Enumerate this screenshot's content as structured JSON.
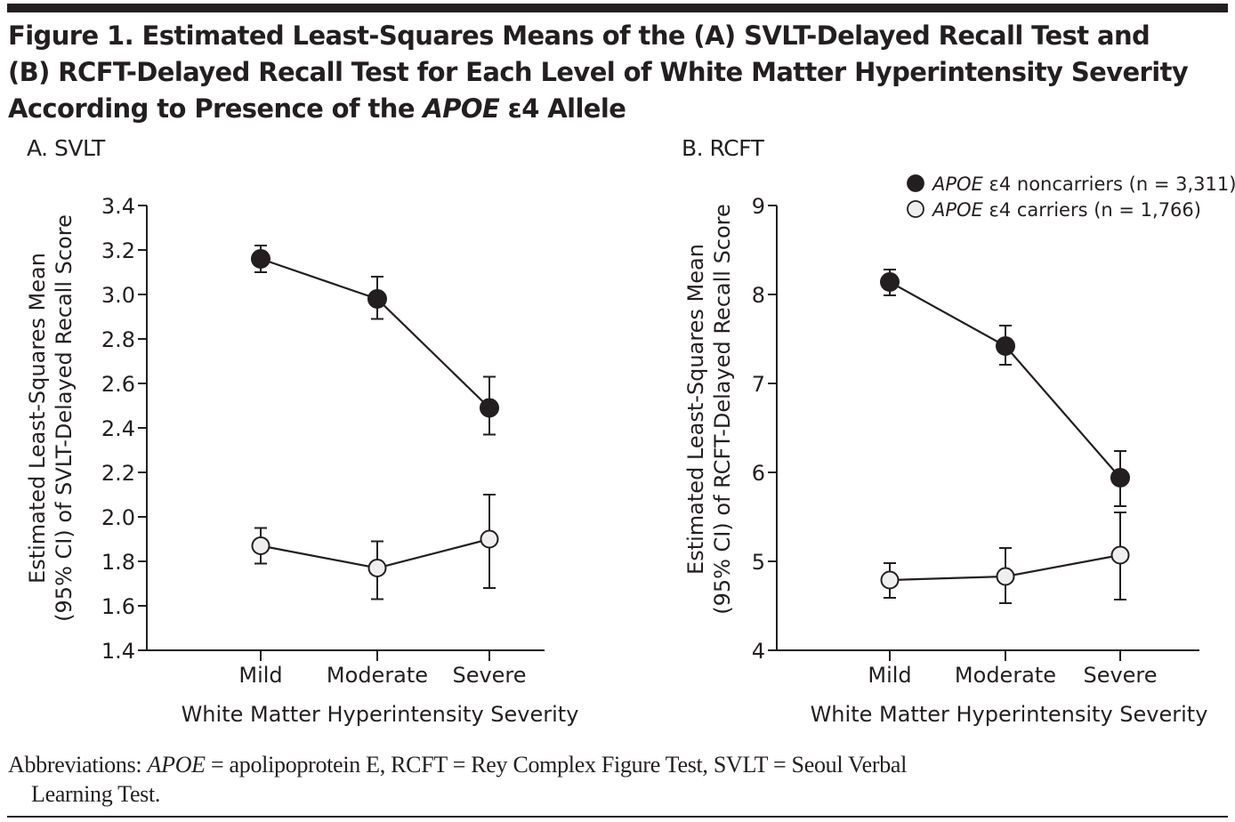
{
  "figure": {
    "title_lines": [
      [
        "Figure 1. Estimated Least-Squares Means of the (A) SVLT-Delayed Recall Test and"
      ],
      [
        "(B) RCFT-Delayed Recall Test for Each Level of White Matter Hyperintensity Severity"
      ],
      [
        "According to Presence of the ",
        "APOE",
        " ε4 Allele"
      ]
    ],
    "footnote": {
      "prefix": "Abbreviations: ",
      "apoe": "APOE",
      "line1_rest": " = apolipoprotein E, RCFT = Rey Complex Figure Test, SVLT = Seoul Verbal",
      "line2": "Learning Test."
    }
  },
  "colors": {
    "ink": "#231f20",
    "noncarrier_fill": "#231f20",
    "carrier_fill": "#efefef"
  },
  "chart_data": [
    {
      "type": "line",
      "panel_label": "A. SVLT",
      "title": "A. SVLT",
      "xlabel": "White Matter Hyperintensity Severity",
      "ylabel_lines": [
        "Estimated Least-Squares Mean",
        "(95% CI) of SVLT-Delayed Recall Score"
      ],
      "categories": [
        "Mild",
        "Moderate",
        "Severe"
      ],
      "ylim": [
        1.4,
        3.4
      ],
      "yticks": [
        1.4,
        1.6,
        1.8,
        2.0,
        2.2,
        2.4,
        2.6,
        2.8,
        3.0,
        3.2,
        3.4
      ],
      "ytick_labels": [
        "1.4",
        "1.6",
        "1.8",
        "2.0",
        "2.2",
        "2.4",
        "2.6",
        "2.8",
        "3.0",
        "3.2",
        "3.4"
      ],
      "grid": false,
      "legend": null,
      "series": [
        {
          "name": "APOE ε4 noncarriers (n = 3,311)",
          "marker": "filled",
          "values": [
            3.16,
            2.98,
            2.49
          ],
          "ci_lower": [
            3.1,
            2.89,
            2.37
          ],
          "ci_upper": [
            3.22,
            3.08,
            2.63
          ]
        },
        {
          "name": "APOE ε4 carriers (n = 1,766)",
          "marker": "open",
          "values": [
            1.87,
            1.77,
            1.9
          ],
          "ci_lower": [
            1.79,
            1.63,
            1.68
          ],
          "ci_upper": [
            1.95,
            1.89,
            2.1
          ]
        }
      ]
    },
    {
      "type": "line",
      "panel_label": "B. RCFT",
      "title": "B. RCFT",
      "xlabel": "White Matter Hyperintensity Severity",
      "ylabel_lines": [
        "Estimated Least-Squares Mean",
        "(95% CI) of RCFT-Delayed Recall Score"
      ],
      "categories": [
        "Mild",
        "Moderate",
        "Severe"
      ],
      "ylim": [
        4,
        9
      ],
      "yticks": [
        4,
        5,
        6,
        7,
        8,
        9
      ],
      "ytick_labels": [
        "4",
        "5",
        "6",
        "7",
        "8",
        "9"
      ],
      "grid": false,
      "legend": {
        "position": "top-right",
        "entries": [
          {
            "italic": "APOE",
            "text": " ε4 noncarriers (n = 3,311)",
            "marker": "filled"
          },
          {
            "italic": "APOE",
            "text": " ε4 carriers (n = 1,766)",
            "marker": "open"
          }
        ]
      },
      "series": [
        {
          "name": "APOE ε4 noncarriers (n = 3,311)",
          "marker": "filled",
          "values": [
            8.14,
            7.42,
            5.94
          ],
          "ci_lower": [
            7.99,
            7.21,
            5.62
          ],
          "ci_upper": [
            8.28,
            7.65,
            6.24
          ]
        },
        {
          "name": "APOE ε4 carriers (n = 1,766)",
          "marker": "open",
          "values": [
            4.79,
            4.83,
            5.07
          ],
          "ci_lower": [
            4.59,
            4.53,
            4.57
          ],
          "ci_upper": [
            4.98,
            5.15,
            5.55
          ]
        }
      ]
    }
  ]
}
